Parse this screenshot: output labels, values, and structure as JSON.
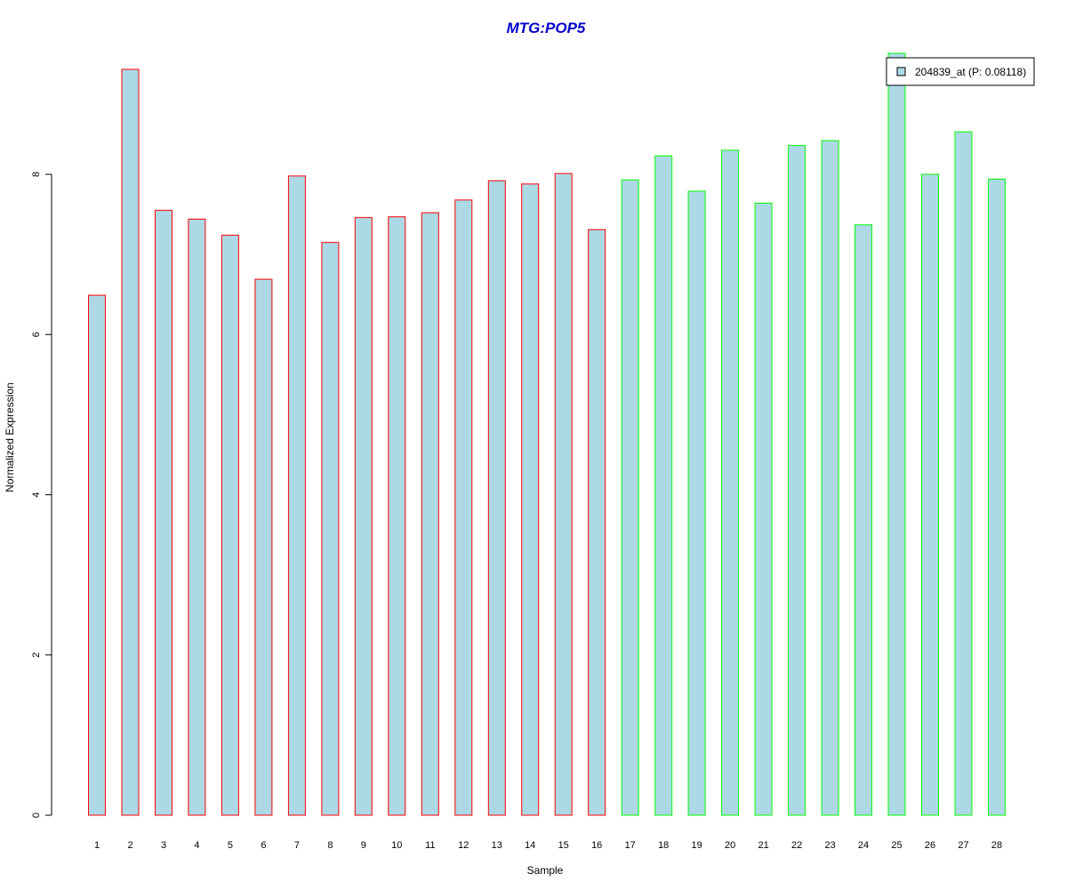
{
  "chart_data": {
    "type": "bar",
    "title": "MTG:POP5",
    "xlabel": "Sample",
    "ylabel": "Normalized Expression",
    "categories": [
      "1",
      "2",
      "3",
      "4",
      "5",
      "6",
      "7",
      "8",
      "9",
      "10",
      "11",
      "12",
      "13",
      "14",
      "15",
      "16",
      "17",
      "18",
      "19",
      "20",
      "21",
      "22",
      "23",
      "24",
      "25",
      "26",
      "27",
      "28"
    ],
    "series": [
      {
        "name": "204839_at (P: 0.08118)",
        "values": [
          6.49,
          9.31,
          7.55,
          7.44,
          7.24,
          6.69,
          7.98,
          7.15,
          7.46,
          7.47,
          7.52,
          7.68,
          7.92,
          7.88,
          8.01,
          7.31,
          7.93,
          8.23,
          7.79,
          8.3,
          7.64,
          8.36,
          8.42,
          7.37,
          9.51,
          8.0,
          8.53,
          7.94
        ]
      }
    ],
    "groups": [
      {
        "samples": [
          1,
          2,
          3,
          4,
          5,
          6,
          7,
          8,
          9,
          10,
          11,
          12,
          13,
          14,
          15,
          16
        ],
        "border_color": "#ff0000"
      },
      {
        "samples": [
          17,
          18,
          19,
          20,
          21,
          22,
          23,
          24,
          25,
          26,
          27,
          28
        ],
        "border_color": "#00ff00"
      }
    ],
    "yticks": [
      0,
      2,
      4,
      6,
      8
    ],
    "ylim": [
      0,
      9.51
    ],
    "grid": false,
    "legend_position": "top-right",
    "colors": {
      "title": "#0000cc",
      "bar_fill": "#add8e6",
      "group1_border": "#ff0000",
      "group2_border": "#00ff00"
    }
  }
}
